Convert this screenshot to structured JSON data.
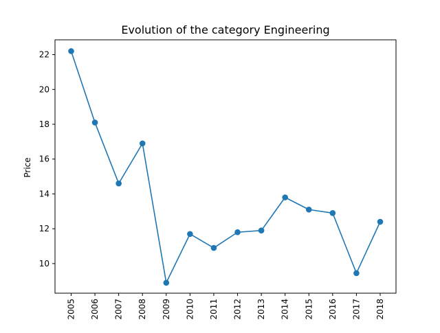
{
  "chart_data": {
    "type": "line",
    "title": "Evolution of the category Engineering",
    "xlabel": "",
    "ylabel": "Price",
    "categories": [
      "2005",
      "2006",
      "2007",
      "2008",
      "2009",
      "2010",
      "2011",
      "2012",
      "2013",
      "2014",
      "2015",
      "2016",
      "2017",
      "2018"
    ],
    "series": [
      {
        "values": [
          22.2,
          18.1,
          14.6,
          16.9,
          8.9,
          11.7,
          10.9,
          11.8,
          11.9,
          13.8,
          13.1,
          12.9,
          9.45,
          12.4
        ],
        "color": "#1f77b4",
        "marker": "circle"
      }
    ],
    "yticks": [
      "10",
      "12",
      "14",
      "16",
      "18",
      "20",
      "22"
    ],
    "ylim": [
      8.3,
      22.85
    ],
    "grid": false,
    "legend": "none"
  }
}
